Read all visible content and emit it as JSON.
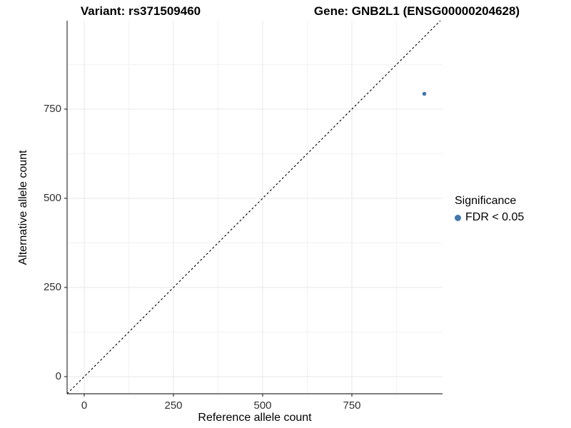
{
  "chart_data": {
    "type": "scatter",
    "titles": {
      "variant": "Variant: rs371509460",
      "gene": "Gene: GNB2L1 (ENSG00000204628)"
    },
    "xlabel": "Reference allele count",
    "ylabel": "Alternative allele count",
    "x_ticks": [
      0,
      250,
      500,
      750
    ],
    "y_ticks": [
      0,
      250,
      500,
      750
    ],
    "x_minor_ticks": [
      125,
      375,
      625,
      875
    ],
    "y_minor_ticks": [
      125,
      375,
      625,
      875
    ],
    "xlim": [
      -48,
      1004
    ],
    "ylim": [
      -48,
      998
    ],
    "grid": true,
    "identity_line": {
      "style": "dashed",
      "equation": "y = x"
    },
    "points": [
      {
        "x": 953,
        "y": 793,
        "series": "FDR < 0.05",
        "radius": 2.8
      }
    ],
    "legend": {
      "position": "right",
      "title": "Significance",
      "items": [
        {
          "label": "FDR < 0.05",
          "color": "#4277AE"
        }
      ]
    },
    "colors": {
      "point": "#4277AE",
      "axis": "#333333",
      "grid_major": "#e7e7e7",
      "grid_minor": "#f2f2f2",
      "dashed_line": "#000000",
      "background": "#ffffff"
    }
  }
}
